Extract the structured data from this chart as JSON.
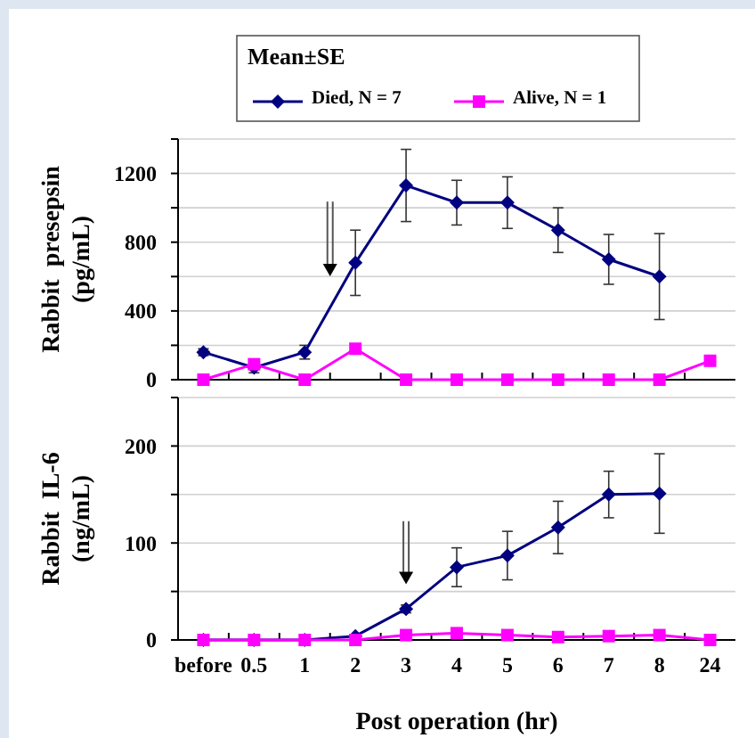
{
  "chart_data": [
    {
      "type": "line",
      "ylabel": "Rabbit  presepsin (pg/mL)",
      "legend_title": "Mean±SE",
      "legend": "top",
      "grid": "y",
      "categories": [
        null,
        null,
        null,
        null,
        null,
        null,
        null,
        null,
        null,
        null,
        null
      ],
      "ylim": [
        0,
        1400
      ],
      "yticks": [
        0,
        {
          "value": 200,
          "label": null
        },
        400,
        {
          "value": 600,
          "label": null
        },
        800,
        {
          "value": 1000,
          "label": null
        },
        1200,
        {
          "value": 1400,
          "label": null
        }
      ],
      "series": [
        {
          "name": "Died, N = 7",
          "color": "#000080",
          "marker": "diamond",
          "values": [
            160,
            70,
            160,
            680,
            1130,
            1030,
            1030,
            870,
            700,
            600,
            null
          ],
          "errors": [
            20,
            30,
            40,
            190,
            210,
            130,
            150,
            130,
            145,
            250,
            null
          ]
        },
        {
          "name": "Alive, N = 1",
          "color": "#ff00ff",
          "marker": "square",
          "values": [
            0,
            90,
            0,
            180,
            0,
            0,
            0,
            0,
            0,
            0,
            110
          ]
        }
      ]
    },
    {
      "type": "line",
      "ylabel": "Rabbit  IL-6 (ng/mL)",
      "xlabel": "Post operation (hr)",
      "grid": "y",
      "categories": [
        "before",
        "0.5",
        "1",
        "2",
        "3",
        "4",
        "5",
        "6",
        "7",
        "8",
        "24"
      ],
      "ylim": [
        0,
        250
      ],
      "yticks": [
        0,
        {
          "value": 50,
          "label": null
        },
        100,
        {
          "value": 150,
          "label": null
        },
        200,
        {
          "value": 250,
          "label": null
        }
      ],
      "series": [
        {
          "color": "#000080",
          "marker": "diamond",
          "values": [
            0,
            0,
            0,
            4,
            32,
            75,
            87,
            116,
            150,
            151,
            null
          ],
          "errors": [
            null,
            null,
            null,
            null,
            4,
            20,
            25,
            27,
            24,
            41,
            null
          ]
        },
        {
          "color": "#ff00ff",
          "marker": "square",
          "values": [
            0,
            0,
            0,
            0,
            5,
            7,
            5,
            3,
            4,
            5,
            0
          ]
        }
      ]
    }
  ]
}
